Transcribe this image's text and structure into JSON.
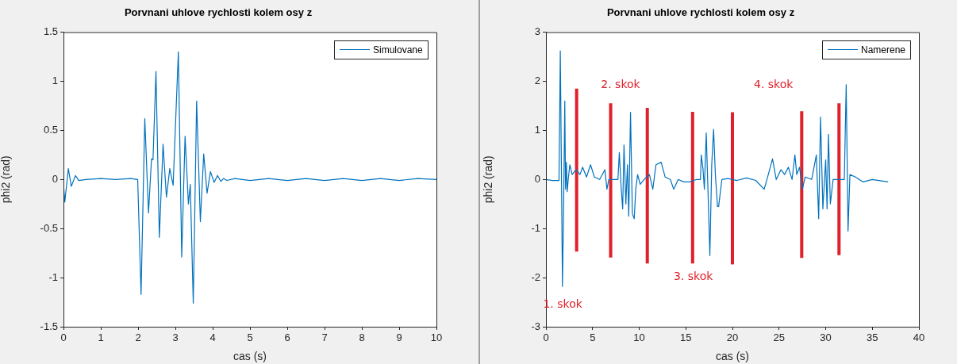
{
  "chart_data": [
    {
      "type": "line",
      "title": "Porvnani uhlove rychlosti kolem osy z",
      "xlabel": "cas (s)",
      "ylabel": "phi2 (rad)",
      "xlim": [
        0,
        10
      ],
      "xticks": [
        0,
        1,
        2,
        3,
        4,
        5,
        6,
        7,
        8,
        9,
        10
      ],
      "ylim": [
        -1.5,
        1.5
      ],
      "yticks": [
        -1.5,
        -1,
        -0.5,
        0,
        0.5,
        1,
        1.5
      ],
      "grid": false,
      "legend": "top right",
      "marker": "none",
      "line_style": "solid",
      "series": [
        {
          "name": "Simulovane",
          "color": "#0072bd",
          "x": [
            0,
            0.035,
            0.13,
            0.21,
            0.32,
            0.41,
            0.6,
            1.0,
            1.4,
            1.8,
            1.99,
            2.08,
            2.18,
            2.28,
            2.36,
            2.4,
            2.48,
            2.57,
            2.67,
            2.76,
            2.85,
            2.94,
            3.08,
            3.17,
            3.26,
            3.35,
            3.4,
            3.48,
            3.57,
            3.67,
            3.76,
            3.85,
            3.94,
            4.04,
            4.13,
            4.22,
            4.29,
            4.38,
            4.6,
            5.0,
            5.5,
            6.0,
            6.5,
            7.0,
            7.5,
            8.0,
            8.5,
            9.0,
            9.5,
            10.0
          ],
          "values": [
            -0.05,
            -0.23,
            0.11,
            -0.07,
            0.04,
            -0.01,
            0,
            0.01,
            0,
            0.01,
            0,
            -1.17,
            0.62,
            -0.34,
            0.21,
            0.2,
            1.1,
            -0.59,
            0.36,
            -0.18,
            0.11,
            -0.06,
            1.3,
            -0.79,
            0.44,
            -0.25,
            -0.05,
            -1.26,
            0.8,
            -0.43,
            0.26,
            -0.14,
            0.08,
            -0.03,
            0.04,
            -0.02,
            0.01,
            -0.01,
            0.01,
            -0.01,
            0.01,
            -0.01,
            0.01,
            -0.01,
            0.01,
            -0.01,
            0.01,
            -0.01,
            0.01,
            0
          ]
        }
      ]
    },
    {
      "type": "line",
      "title": "Porvnani uhlove rychlosti kolem osy z",
      "xlabel": "cas (s)",
      "ylabel": "phi2 (rad)",
      "xlim": [
        0,
        40
      ],
      "xticks": [
        0,
        5,
        10,
        15,
        20,
        25,
        30,
        35,
        40
      ],
      "ylim": [
        -3,
        3
      ],
      "yticks": [
        -3,
        -2,
        -1,
        0,
        1,
        2,
        3
      ],
      "grid": false,
      "legend": "top right",
      "marker": "none",
      "line_style": "solid",
      "annotations": [
        "1. skok",
        "2. skok",
        "3. skok",
        "4. skok"
      ],
      "series": [
        {
          "name": "Namerene",
          "color": "#0072bd",
          "x": [
            0,
            0.7,
            1.4,
            1.54,
            1.66,
            1.77,
            1.91,
            2.02,
            2.1,
            2.19,
            2.28,
            2.39,
            2.56,
            2.81,
            3.23,
            3.65,
            3.93,
            4.35,
            4.78,
            5.2,
            5.76,
            6.32,
            6.54,
            6.74,
            7.16,
            7.72,
            7.87,
            8.06,
            8.23,
            8.37,
            8.57,
            8.74,
            8.88,
            9.07,
            9.27,
            9.47,
            9.63,
            9.83,
            10.11,
            10.53,
            11.1,
            11.46,
            11.8,
            12.36,
            12.78,
            13.34,
            13.7,
            14.19,
            14.75,
            15.45,
            16.15,
            16.57,
            16.66,
            16.85,
            16.99,
            17.19,
            17.39,
            17.58,
            17.78,
            17.98,
            18.17,
            18.4,
            18.52,
            18.87,
            19.5,
            20.5,
            21.5,
            22.5,
            23.4,
            23.7,
            24.3,
            24.7,
            25.2,
            25.6,
            26.0,
            26.4,
            26.7,
            26.9,
            27.2,
            27.5,
            27.8,
            28.5,
            29.0,
            29.25,
            29.45,
            29.7,
            30.0,
            30.15,
            30.3,
            30.5,
            30.8,
            31.5,
            32.0,
            32.2,
            32.4,
            32.6,
            33.2,
            34.0,
            35.0,
            36.7
          ],
          "values": [
            0,
            -0.02,
            -0.02,
            2.62,
            0.2,
            -2.18,
            -0.3,
            1.6,
            -0.2,
            0.35,
            -0.25,
            0,
            0.3,
            0.1,
            0.2,
            0.1,
            0.25,
            0.05,
            0.3,
            0.05,
            0,
            0.2,
            -0.2,
            0,
            0,
            0,
            0.55,
            -0.15,
            -0.6,
            0.7,
            -0.5,
            0.3,
            -0.75,
            1.37,
            -0.7,
            -0.8,
            -0.2,
            0.1,
            -0.1,
            0,
            0.1,
            -0.2,
            0.3,
            0.35,
            0.05,
            0,
            -0.2,
            0,
            -0.05,
            -0.05,
            0,
            0,
            0.5,
            0.2,
            -0.2,
            0.95,
            -0.3,
            -1.55,
            0.3,
            1.02,
            0.1,
            -0.55,
            -0.55,
            0,
            0.02,
            -0.02,
            0.03,
            -0.02,
            -0.2,
            0,
            0.42,
            0,
            0.2,
            0.1,
            0.25,
            0,
            0.5,
            0.1,
            0.25,
            -0.2,
            0.05,
            0,
            0.5,
            -0.8,
            1.27,
            -0.6,
            0.4,
            -0.6,
            0.92,
            -0.5,
            0,
            0,
            0,
            1.93,
            -1.05,
            0.1,
            0.05,
            -0.05,
            0,
            -0.05
          ]
        },
        {
          "color": "#e0202a",
          "x": [
            3.29,
            3.29
          ],
          "values": [
            -1.47,
            1.85
          ]
        },
        {
          "color": "#e0202a",
          "x": [
            6.94,
            6.94
          ],
          "values": [
            -1.59,
            1.55
          ]
        },
        {
          "color": "#e0202a",
          "x": [
            10.87,
            10.87
          ],
          "values": [
            -1.71,
            1.46
          ]
        },
        {
          "color": "#e0202a",
          "x": [
            15.73,
            15.73
          ],
          "values": [
            -1.71,
            1.38
          ]
        },
        {
          "color": "#e0202a",
          "x": [
            20,
            20
          ],
          "values": [
            -1.73,
            1.37
          ]
        },
        {
          "color": "#e0202a",
          "x": [
            27.43,
            27.43
          ],
          "values": [
            -1.6,
            1.39
          ]
        },
        {
          "color": "#e0202a",
          "x": [
            31.43,
            31.43
          ],
          "values": [
            -1.54,
            1.55
          ]
        }
      ]
    }
  ]
}
